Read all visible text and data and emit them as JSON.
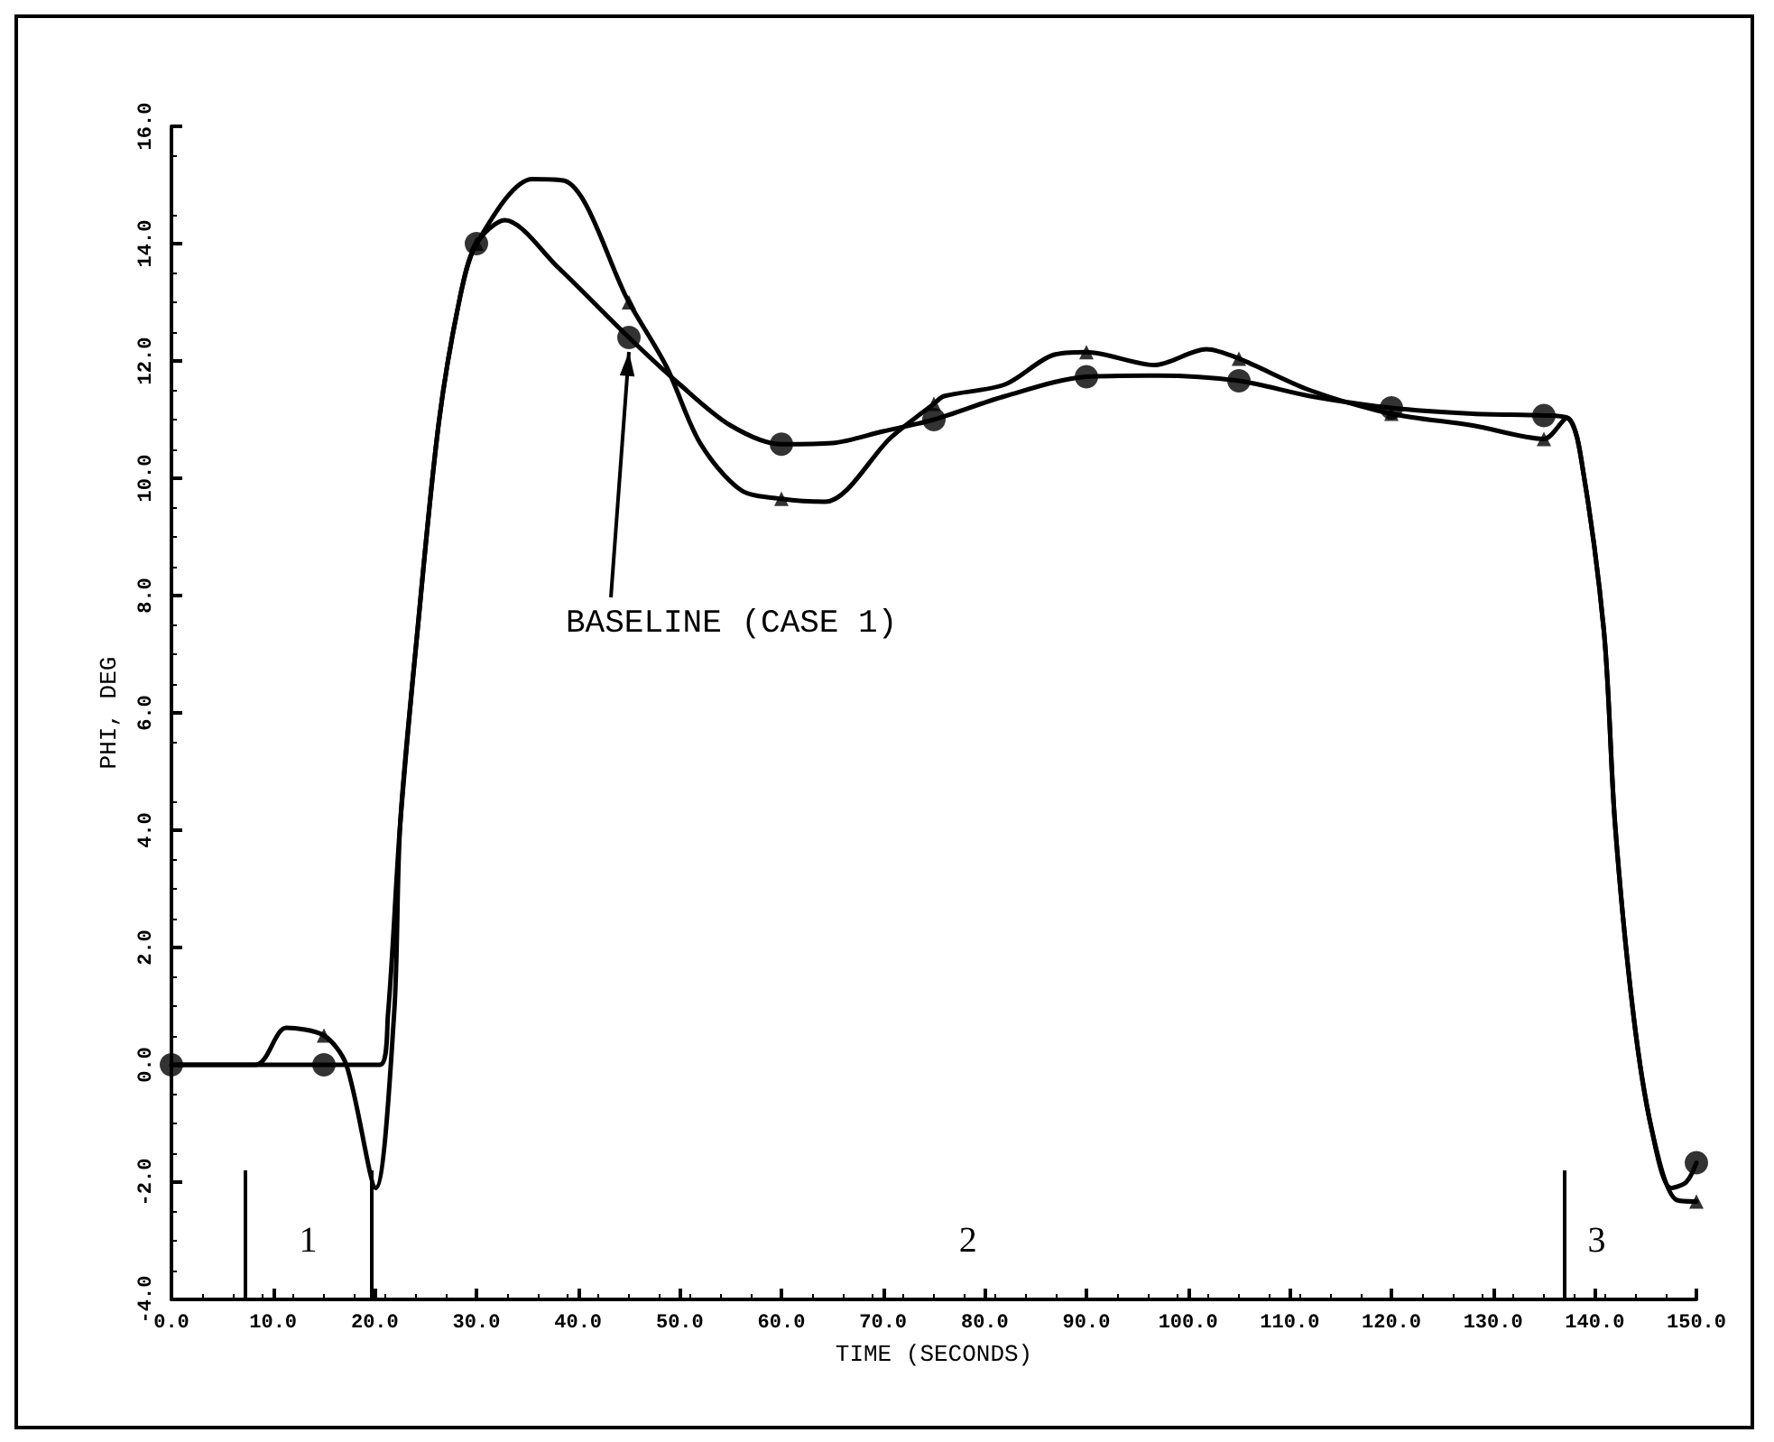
{
  "chart_data": {
    "type": "line",
    "xlabel": "TIME (SECONDS)",
    "ylabel": "PHI, DEG",
    "xlim": [
      0,
      150
    ],
    "ylim": [
      -4,
      16
    ],
    "xticks": [
      {
        "value": 0,
        "label": "0.0"
      },
      {
        "value": 10,
        "label": "10.0"
      },
      {
        "value": 20,
        "label": "20.0"
      },
      {
        "value": 30,
        "label": "30.0"
      },
      {
        "value": 40,
        "label": "40.0"
      },
      {
        "value": 50,
        "label": "50.0"
      },
      {
        "value": 60,
        "label": "60.0"
      },
      {
        "value": 70,
        "label": "70.0"
      },
      {
        "value": 80,
        "label": "80.0"
      },
      {
        "value": 90,
        "label": "90.0"
      },
      {
        "value": 100,
        "label": "100.0"
      },
      {
        "value": 110,
        "label": "110.0"
      },
      {
        "value": 120,
        "label": "120.0"
      },
      {
        "value": 130,
        "label": "130.0"
      },
      {
        "value": 140,
        "label": "140.0"
      },
      {
        "value": 150,
        "label": "150.0"
      }
    ],
    "yticks": [
      {
        "value": -4,
        "label": "-4.0"
      },
      {
        "value": -2,
        "label": "-2.0"
      },
      {
        "value": 0,
        "label": "0.0"
      },
      {
        "value": 2,
        "label": "2.0"
      },
      {
        "value": 4,
        "label": "4.0"
      },
      {
        "value": 6,
        "label": "6.0"
      },
      {
        "value": 8,
        "label": "8.0"
      },
      {
        "value": 10,
        "label": "10.0"
      },
      {
        "value": 12,
        "label": "12.0"
      },
      {
        "value": 14,
        "label": "14.0"
      },
      {
        "value": 16,
        "label": "16.0"
      }
    ],
    "grid": false,
    "series": [
      {
        "color": "#000000",
        "marker": "none",
        "x": [
          0,
          15,
          20.5,
          21.3,
          22.5,
          24.2,
          26.3,
          28.4,
          30,
          32.8,
          38,
          45,
          50,
          55,
          60,
          65,
          70,
          75,
          82,
          90,
          97,
          105,
          112,
          120,
          128,
          135,
          137.3,
          138.5,
          140.9,
          142,
          143.8,
          145.6,
          147.5,
          149,
          150
        ],
        "values": [
          0,
          0,
          0,
          0.86,
          4.1,
          7.4,
          10.95,
          13.1,
          14,
          14.4,
          13.6,
          12.4,
          11.6,
          10.9,
          10.58,
          10.6,
          10.8,
          11.0,
          11.4,
          11.73,
          11.75,
          11.66,
          11.4,
          11.2,
          11.1,
          11.07,
          11.03,
          10.5,
          7.4,
          4.1,
          0.86,
          -1.1,
          -2.1,
          -2.0,
          -1.67
        ]
      },
      {
        "color": "#000000",
        "marker": "none",
        "x": [
          0,
          8.3,
          11.3,
          15,
          17.2,
          20.1,
          21.9,
          22.5,
          24.2,
          26.3,
          28.4,
          30,
          35.5,
          38.7,
          45,
          48.7,
          52,
          56,
          60,
          64.3,
          70.8,
          75,
          76,
          82,
          86.7,
          90,
          96.7,
          101.8,
          105,
          112,
          120,
          128,
          135,
          137.3,
          138.5,
          140.9,
          142,
          143.8,
          145.6,
          148,
          150
        ],
        "values": [
          0,
          0,
          0.63,
          0.5,
          0,
          -2.1,
          0.86,
          4.1,
          7.4,
          10.95,
          13.1,
          14,
          15.1,
          15.07,
          13.0,
          11.9,
          10.6,
          9.8,
          9.65,
          9.6,
          10.7,
          11.27,
          11.4,
          11.6,
          12.1,
          12.15,
          11.93,
          12.2,
          12.04,
          11.5,
          11.1,
          10.9,
          10.67,
          11.03,
          10.5,
          7.4,
          4.1,
          0.86,
          -1.1,
          -2.3,
          -2.33
        ]
      },
      {
        "type": "scatter",
        "color": "#000000",
        "marker": "circle",
        "x": [
          0,
          15,
          30,
          45,
          60,
          75,
          90,
          105,
          120,
          135,
          150
        ],
        "values": [
          0,
          0,
          14,
          12.4,
          10.58,
          11.0,
          11.73,
          11.66,
          11.2,
          11.07,
          -1.67
        ]
      },
      {
        "type": "scatter",
        "color": "#000000",
        "marker": "triangle",
        "x": [
          15,
          30,
          45,
          60,
          75,
          90,
          105,
          120,
          135,
          150
        ],
        "values": [
          0.5,
          14,
          13.0,
          9.65,
          11.27,
          12.15,
          12.04,
          11.1,
          10.67,
          -2.33
        ]
      }
    ],
    "ref_lines": [
      {
        "axis": "x",
        "value": 7.2
      },
      {
        "axis": "x",
        "value": 19.7
      },
      {
        "axis": "x",
        "value": 137
      }
    ],
    "annotations": [
      {
        "text": "BASELINE (CASE 1)",
        "x": 45,
        "y": 12.4
      },
      "1",
      "2",
      "3"
    ]
  }
}
